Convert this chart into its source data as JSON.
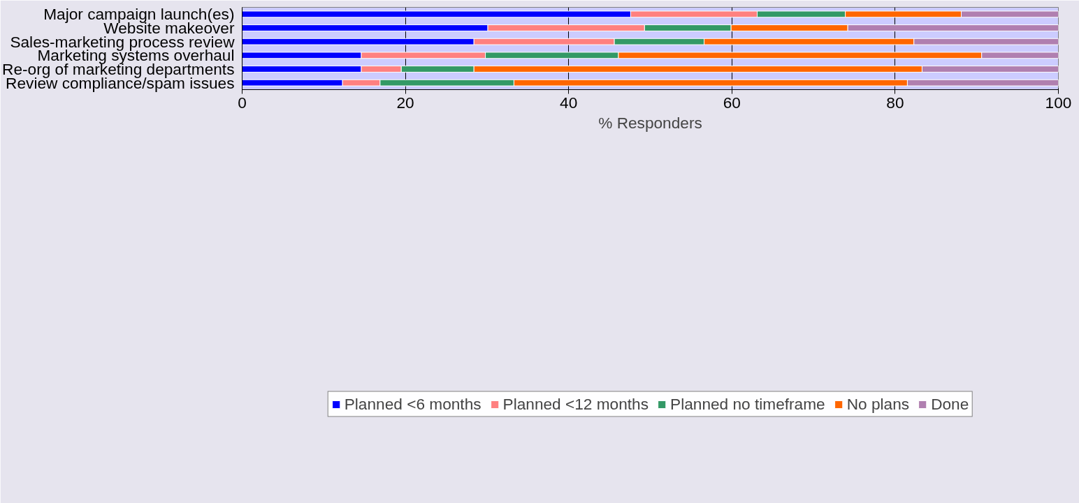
{
  "chart_data": {
    "type": "bar",
    "orientation": "horizontal",
    "stacked": true,
    "xlabel": "% Responders",
    "categories": [
      "Major campaign launch(es)",
      "Website makeover",
      "Sales-marketing process review",
      "Marketing systems overhaul",
      "Re-org of marketing departments",
      "Review compliance/spam issues"
    ],
    "series": [
      {
        "name": "Planned <6 months",
        "color": "#0000ff",
        "values": [
          47.6,
          30.1,
          28.4,
          14.6,
          14.6,
          12.3
        ]
      },
      {
        "name": "Planned <12 months",
        "color": "#ff8080",
        "values": [
          15.5,
          19.2,
          17.2,
          15.2,
          4.9,
          4.6
        ]
      },
      {
        "name": "Planned no timeframe",
        "color": "#339966",
        "values": [
          10.8,
          10.6,
          11.0,
          16.3,
          8.9,
          16.4
        ]
      },
      {
        "name": "No plans",
        "color": "#ff6600",
        "values": [
          14.2,
          14.3,
          25.7,
          44.5,
          54.9,
          48.2
        ]
      },
      {
        "name": "Done",
        "color": "#b07fb0",
        "values": [
          11.9,
          25.8,
          17.7,
          9.4,
          16.7,
          18.5
        ]
      }
    ],
    "xlim": [
      0,
      100
    ],
    "xticks": [
      0,
      20,
      40,
      60,
      80,
      100
    ],
    "grid": "x",
    "legend": "bottom"
  }
}
